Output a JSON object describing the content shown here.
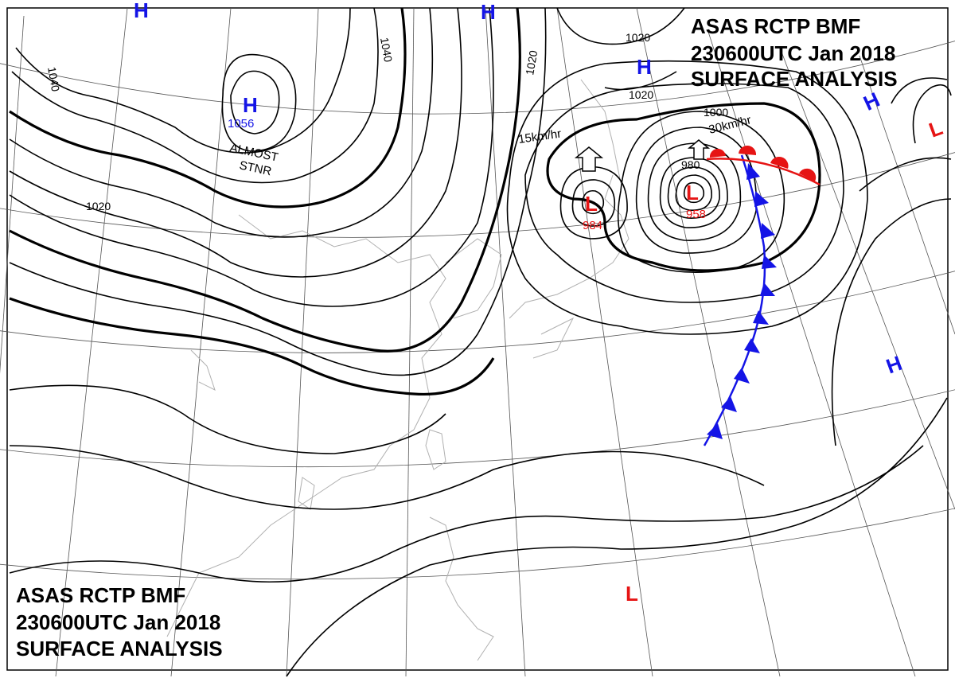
{
  "header": {
    "line1": "ASAS RCTP BMF",
    "line2": "230600UTC Jan 2018",
    "line3": "SURFACE ANALYSIS"
  },
  "isobar_labels": {
    "l1040a": "1040",
    "l1040b": "1040",
    "l1020a": "1020",
    "l1020b": "1020",
    "l1020c": "1020",
    "l1020d": "1020",
    "l1000": "1000",
    "l980": "980"
  },
  "annotations": {
    "almost": "ALMOST",
    "stnr": "STNR",
    "speed1": "15km/hr",
    "speed2": "30km/hr"
  },
  "pressure_centers": {
    "high_mongolia_value": "1056",
    "low_japan_sea_value": "984",
    "low_kuril_value": "958"
  },
  "symbols": {
    "high": "H",
    "low": "L"
  },
  "colors": {
    "high": "#1414e6",
    "low": "#e61414",
    "cold_front": "#1414e6",
    "warm_front": "#e61414"
  }
}
